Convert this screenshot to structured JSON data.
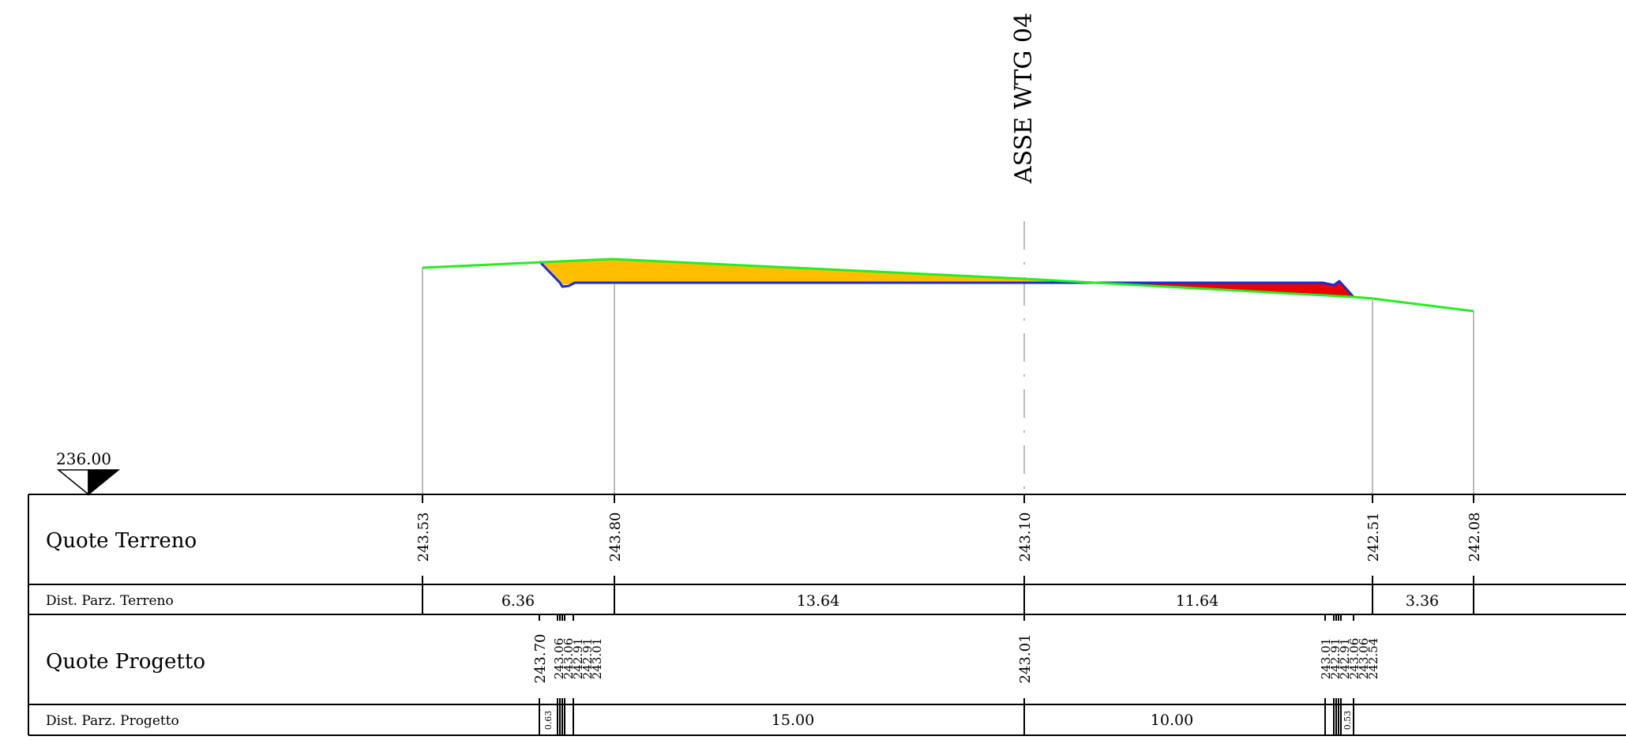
{
  "axis_title": "ASSE WTG 04",
  "datum": "236.00",
  "rows": {
    "quote_terreno": "Quote Terreno",
    "dist_terreno": "Dist. Parz. Terreno",
    "quote_progetto": "Quote Progetto",
    "dist_progetto": "Dist. Parz. Progetto"
  },
  "terreno_quote": [
    "243.53",
    "243.80",
    "243.10",
    "242.51",
    "242.08"
  ],
  "terreno_dist": [
    "6.36",
    "13.64",
    "11.64",
    "3.36"
  ],
  "progetto_quote_left": [
    "243.70",
    "243.06",
    "243.06",
    "242.91",
    "242.91",
    "243.01"
  ],
  "progetto_quote_axis": "243.01",
  "progetto_quote_right": [
    "243.01",
    "242.91",
    "242.91",
    "243.06",
    "243.06",
    "242.54"
  ],
  "progetto_dist_left_small": "0.63",
  "progetto_dist_right_small": "0.53",
  "progetto_dist": [
    "15.00",
    "10.00"
  ],
  "colors": {
    "terrain_line": "#22ee22",
    "design_line": "#1a2bd6",
    "cut_fill": "#ffbf00",
    "fill_fill": "#ee0000",
    "guide": "#bbbbbb"
  },
  "chart_data": {
    "type": "cross-section",
    "datum": 236.0,
    "terrain": {
      "distances": [
        0,
        6.36,
        20.0,
        31.64,
        35.0
      ],
      "elevations": [
        243.53,
        243.8,
        243.1,
        242.51,
        242.08
      ]
    },
    "design": {
      "elevations_left": [
        243.7,
        243.06,
        243.06,
        242.91,
        242.91,
        243.01
      ],
      "elevation_axis": 243.01,
      "elevations_right": [
        243.01,
        242.91,
        242.91,
        243.06,
        243.06,
        242.54
      ],
      "partial_distances": [
        0.63,
        15.0,
        10.0,
        0.53
      ]
    }
  }
}
